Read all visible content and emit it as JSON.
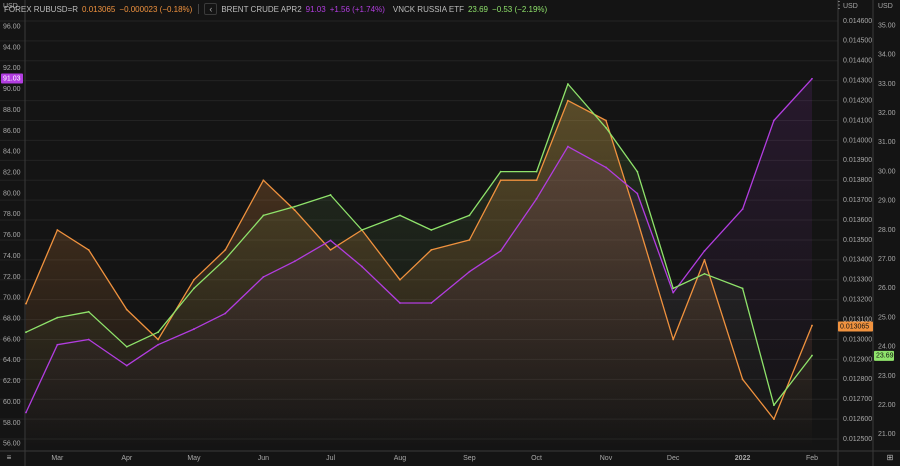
{
  "legend": {
    "forex": {
      "name": "FOREX RUBUSD=R",
      "value": "0.013065",
      "change": "−0.000023 (−0.18%)",
      "color": "#f0923e"
    },
    "brent": {
      "name": "BRENT CRUDE APR2",
      "value": "91.03",
      "change": "+1.56 (+1.74%)",
      "color": "#b23de0"
    },
    "vnck": {
      "name": "VNCK RUSSIA ETF",
      "value": "23.69",
      "change": "−0.53 (−2.19%)",
      "color": "#8fe36b"
    }
  },
  "controls": {
    "collapse_icon": "‹",
    "menu_icon": "⋮",
    "nav_left_icon": "≡",
    "nav_right_icon": "⊞"
  },
  "axes": {
    "left_unit": "USD",
    "mid_unit": "USD",
    "right_unit": "USD",
    "left_ticks": [
      "96.00",
      "94.00",
      "92.00",
      "90.00",
      "88.00",
      "86.00",
      "84.00",
      "82.00",
      "80.00",
      "78.00",
      "76.00",
      "74.00",
      "72.00",
      "70.00",
      "68.00",
      "66.00",
      "64.00",
      "62.00",
      "60.00",
      "58.00",
      "56.00"
    ],
    "mid_ticks": [
      "0.014600",
      "0.014500",
      "0.014400",
      "0.014300",
      "0.014200",
      "0.014100",
      "0.014000",
      "0.013900",
      "0.013800",
      "0.013700",
      "0.013600",
      "0.013500",
      "0.013400",
      "0.013300",
      "0.013200",
      "0.013100",
      "0.013000",
      "0.012900",
      "0.012800",
      "0.012700",
      "0.012600",
      "0.012500"
    ],
    "right_ticks": [
      "35.00",
      "34.00",
      "33.00",
      "32.00",
      "31.00",
      "30.00",
      "29.00",
      "28.00",
      "27.00",
      "26.00",
      "25.00",
      "24.00",
      "23.00",
      "22.00",
      "21.00"
    ],
    "months": [
      "Mar",
      "Apr",
      "May",
      "Jun",
      "Jul",
      "Aug",
      "Sep",
      "Oct",
      "Nov",
      "Dec",
      "2022",
      "Feb"
    ],
    "badges": {
      "brent": "91.03",
      "forex": "0.013065",
      "vnck": "23.69"
    }
  },
  "chart_data": {
    "type": "line",
    "x": [
      "2021-02-15",
      "2021-03-01",
      "2021-03-15",
      "2021-04-01",
      "2021-04-15",
      "2021-05-01",
      "2021-05-15",
      "2021-06-01",
      "2021-06-15",
      "2021-07-01",
      "2021-07-15",
      "2021-08-01",
      "2021-08-15",
      "2021-09-01",
      "2021-09-15",
      "2021-10-01",
      "2021-10-15",
      "2021-11-01",
      "2021-11-15",
      "2021-12-01",
      "2021-12-15",
      "2022-01-01",
      "2022-01-15",
      "2022-02-01"
    ],
    "series": [
      {
        "name": "FOREX RUBUSD=R",
        "axis": "mid",
        "color": "#f0923e",
        "values": [
          0.01318,
          0.01355,
          0.01345,
          0.01315,
          0.013,
          0.0133,
          0.01345,
          0.0138,
          0.01365,
          0.01345,
          0.01355,
          0.0133,
          0.01345,
          0.0135,
          0.0138,
          0.0138,
          0.0142,
          0.0141,
          0.0136,
          0.013,
          0.0134,
          0.0128,
          0.0126,
          0.01307
        ]
      },
      {
        "name": "BRENT CRUDE APR2",
        "axis": "left",
        "color": "#b23de0",
        "values": [
          59.0,
          65.5,
          66.0,
          63.5,
          65.5,
          67.0,
          68.5,
          72.0,
          73.5,
          75.5,
          73.0,
          69.5,
          69.5,
          72.5,
          74.5,
          79.5,
          84.5,
          82.5,
          80.0,
          70.5,
          74.5,
          78.5,
          87.0,
          91.0
        ]
      },
      {
        "name": "VNCK RUSSIA ETF",
        "axis": "right",
        "color": "#8fe36b",
        "values": [
          24.5,
          25.0,
          25.2,
          24.0,
          24.5,
          26.0,
          27.0,
          28.5,
          28.8,
          29.2,
          28.0,
          28.5,
          28.0,
          28.5,
          30.0,
          30.0,
          33.0,
          31.5,
          30.0,
          26.0,
          26.5,
          26.0,
          22.0,
          23.7
        ]
      }
    ],
    "xlabel": "",
    "ylabel_left": "USD",
    "ylabel_mid": "USD",
    "ylabel_right": "USD",
    "ylim_left": [
      55.5,
      97.5
    ],
    "ylim_mid": [
      0.01245,
      0.01465
    ],
    "ylim_right": [
      20.5,
      35.5
    ],
    "grid": true,
    "legend": "top-left"
  }
}
